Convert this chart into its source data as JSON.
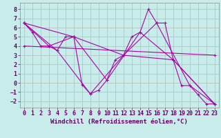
{
  "title": "",
  "xlabel": "Windchill (Refroidissement éolien,°C)",
  "ylabel": "",
  "background_color": "#c8ecea",
  "grid_color": "#b0b0b0",
  "line_color": "#aa00aa",
  "xlim": [
    -0.5,
    23.5
  ],
  "ylim": [
    -2.7,
    8.7
  ],
  "xticks": [
    0,
    1,
    2,
    3,
    4,
    5,
    6,
    7,
    8,
    9,
    10,
    11,
    12,
    13,
    14,
    15,
    16,
    17,
    18,
    19,
    20,
    21,
    22,
    23
  ],
  "yticks": [
    -2,
    -1,
    0,
    1,
    2,
    3,
    4,
    5,
    6,
    7,
    8
  ],
  "lines": [
    {
      "x": [
        0,
        1,
        2,
        3,
        4,
        5,
        6,
        7,
        8,
        9,
        10,
        11,
        12,
        13,
        14,
        15,
        16,
        17,
        18,
        19,
        20,
        21,
        22,
        23
      ],
      "y": [
        6.5,
        5.5,
        4.0,
        4.0,
        3.5,
        5.0,
        5.0,
        -0.2,
        -1.2,
        -0.8,
        0.3,
        2.5,
        3.0,
        5.0,
        5.5,
        8.0,
        6.5,
        6.5,
        2.5,
        -0.3,
        -0.3,
        -1.3,
        -2.3,
        -2.3
      ]
    },
    {
      "x": [
        0,
        3,
        6,
        10,
        14,
        18,
        23
      ],
      "y": [
        6.5,
        4.0,
        5.0,
        0.3,
        5.5,
        2.5,
        -2.3
      ]
    },
    {
      "x": [
        0,
        6,
        12,
        18,
        23
      ],
      "y": [
        6.5,
        5.0,
        3.0,
        2.5,
        -2.3
      ]
    },
    {
      "x": [
        0,
        4,
        8,
        12,
        16,
        20,
        23
      ],
      "y": [
        6.5,
        3.5,
        -1.2,
        3.0,
        6.5,
        -0.3,
        -2.3
      ]
    },
    {
      "x": [
        0,
        23
      ],
      "y": [
        4.0,
        3.0
      ]
    }
  ],
  "font_size_label": 6.5,
  "font_size_tick": 6.0,
  "xlabel_color": "#660066",
  "tick_color": "#660066"
}
